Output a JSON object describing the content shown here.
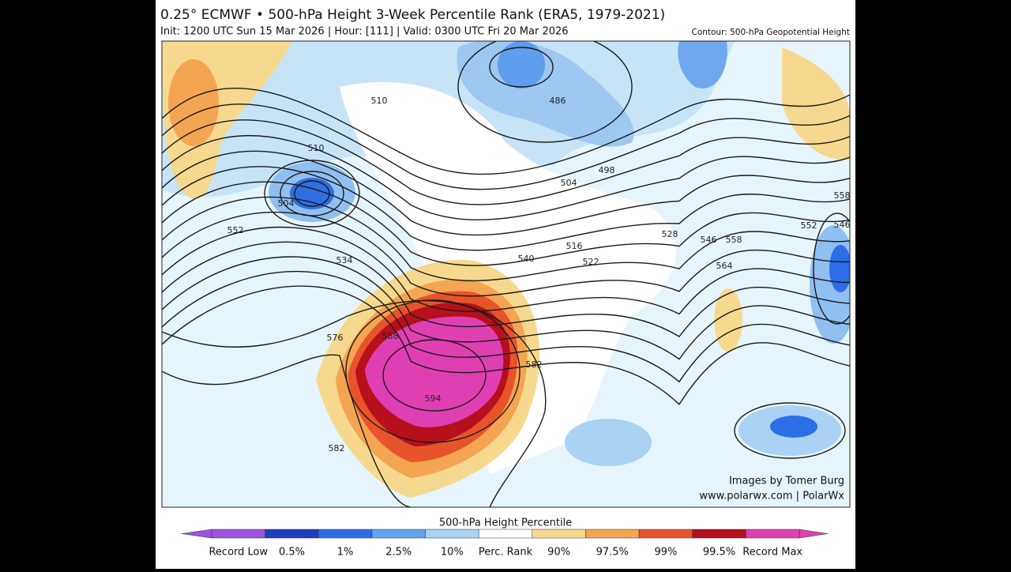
{
  "header": {
    "title": "0.25° ECMWF • 500-hPa Height 3-Week Percentile Rank (ERA5, 1979-2021)",
    "subtitle": "Init: 1200 UTC Sun 15 Mar 2026 | Hour: [111] | Valid: 0300 UTC Fri 20 Mar 2026",
    "contour_note": "Contour: 500-hPa Geopotential Height"
  },
  "map": {
    "contour_labels": [
      510,
      510,
      504,
      552,
      534,
      576,
      588,
      582,
      594,
      582,
      540,
      516,
      522,
      528,
      546,
      558,
      564,
      552,
      546,
      558,
      486,
      498,
      504
    ],
    "credit": "Images by Tomer Burg",
    "website": "www.polarwx.com | PolarWx"
  },
  "colorbar": {
    "title": "500-hPa Height Percentile",
    "labels": [
      "Record Low",
      "0.5%",
      "1%",
      "2.5%",
      "10%",
      "Perc. Rank",
      "90%",
      "97.5%",
      "99%",
      "99.5%",
      "Record Max"
    ],
    "colors": [
      "#9c52de",
      "#1d3fbf",
      "#2b6ee6",
      "#62a2ef",
      "#a9d2f4",
      "#ffffff",
      "#f6d98e",
      "#f4a552",
      "#e7532b",
      "#b5101c",
      "#e03fb3"
    ]
  }
}
